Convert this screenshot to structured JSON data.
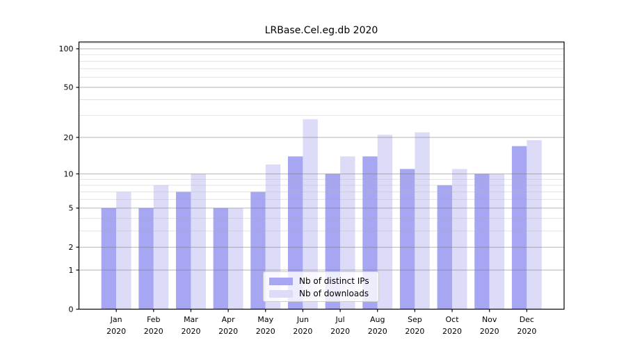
{
  "chart_data": {
    "type": "bar",
    "title": "LRBase.Cel.eg.db 2020",
    "xlabel": "",
    "ylabel": "",
    "y_scale": "log10(1+y)",
    "ylim": [
      0,
      113
    ],
    "grid": "horizontal major and minor gridlines, drawn over bars",
    "legend_position": "lower center",
    "months": [
      "Jan",
      "Feb",
      "Mar",
      "Apr",
      "May",
      "Jun",
      "Jul",
      "Aug",
      "Sep",
      "Oct",
      "Nov",
      "Dec"
    ],
    "year": "2020",
    "y_major_ticks": [
      0,
      1,
      2,
      5,
      10,
      20,
      50,
      100
    ],
    "y_minor_gridlines": [
      3,
      4,
      6,
      7,
      8,
      9,
      30,
      40,
      60,
      70,
      80,
      90,
      110
    ],
    "series": [
      {
        "name": "Nb of distinct IPs",
        "color": "#a6a6f2",
        "values": [
          5,
          5,
          7,
          5,
          7,
          14,
          10,
          14,
          11,
          8,
          10,
          17
        ]
      },
      {
        "name": "Nb of downloads",
        "color": "#dcdcf8",
        "values": [
          7,
          8,
          10,
          5,
          12,
          28,
          14,
          21,
          22,
          11,
          10,
          19
        ]
      }
    ]
  }
}
